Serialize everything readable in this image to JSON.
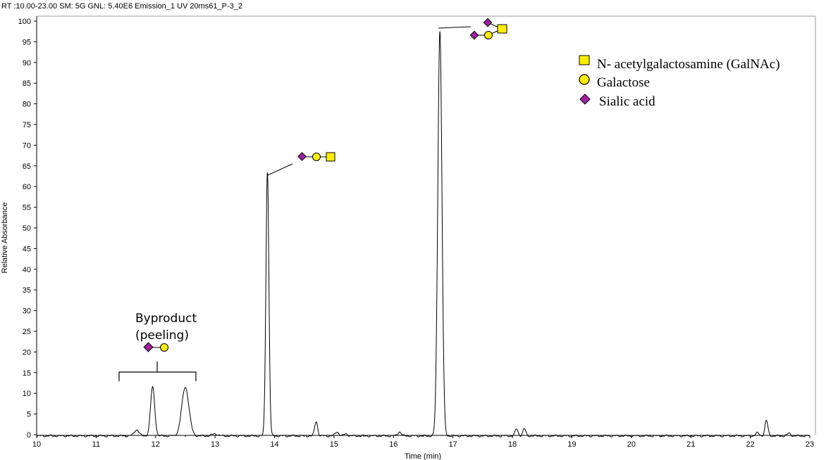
{
  "header_text": "RT :10.00-23.00 SM: 5G GNL: 5.40E6 Emission_1 UV  20ms61_P-3_2",
  "colors": {
    "galnac": "#ffee00",
    "galactose": "#ffee00",
    "sialic": "#a0219e",
    "trace": "#000000",
    "frame": "#999999"
  },
  "legend": [
    {
      "shape": "square",
      "label": "N- acetylgalactosamine (GalNAc)"
    },
    {
      "shape": "circle",
      "label": "Galactose"
    },
    {
      "shape": "diamond",
      "label": "Sialic acid"
    }
  ],
  "byproduct": {
    "line1": "Byproduct",
    "line2": "(peeling)"
  },
  "chart_data": {
    "type": "line",
    "title": "",
    "xlabel": "Time (min)",
    "ylabel": "Relative Absorbance",
    "xlim": [
      10,
      23
    ],
    "ylim": [
      0,
      100
    ],
    "xticks": [
      10,
      11,
      12,
      13,
      14,
      15,
      16,
      17,
      18,
      19,
      20,
      21,
      22,
      23
    ],
    "yticks": [
      0,
      5,
      10,
      15,
      20,
      25,
      30,
      35,
      40,
      45,
      50,
      55,
      60,
      65,
      70,
      75,
      80,
      85,
      90,
      95,
      100
    ],
    "grid": false,
    "baseline": -0.3,
    "peaks": [
      {
        "rt": 11.68,
        "height": 1.5,
        "width": 0.04
      },
      {
        "rt": 11.95,
        "height": 11.8,
        "width": 0.035
      },
      {
        "rt": 12.5,
        "height": 11.8,
        "width": 0.06
      },
      {
        "rt": 13.0,
        "height": 0.5,
        "width": 0.05
      },
      {
        "rt": 13.88,
        "height": 64,
        "width": 0.025
      },
      {
        "rt": 14.7,
        "height": 3.5,
        "width": 0.025
      },
      {
        "rt": 15.05,
        "height": 1.0,
        "width": 0.03
      },
      {
        "rt": 15.2,
        "height": 0.5,
        "width": 0.03
      },
      {
        "rt": 16.1,
        "height": 1.0,
        "width": 0.03
      },
      {
        "rt": 16.78,
        "height": 98,
        "width": 0.035
      },
      {
        "rt": 18.07,
        "height": 1.7,
        "width": 0.025
      },
      {
        "rt": 18.2,
        "height": 1.7,
        "width": 0.025
      },
      {
        "rt": 22.12,
        "height": 0.7,
        "width": 0.03
      },
      {
        "rt": 22.27,
        "height": 3.7,
        "width": 0.025
      },
      {
        "rt": 22.65,
        "height": 0.6,
        "width": 0.03
      }
    ]
  }
}
